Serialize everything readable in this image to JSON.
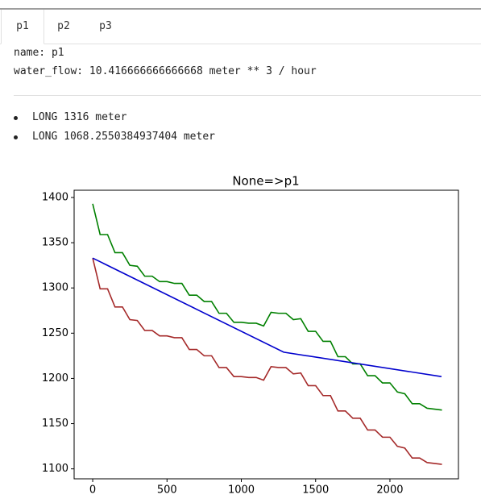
{
  "tabs": [
    "p1",
    "p2",
    "p3"
  ],
  "active_tab": 0,
  "info": [
    "name: p1",
    "water_flow: 10.416666666666668 meter ** 3 / hour"
  ],
  "bullets": [
    "LONG 1316 meter",
    "LONG 1068.2550384937404 meter"
  ],
  "chart_data": {
    "type": "line",
    "title": "None=>p1",
    "xlim": [
      -125,
      2461
    ],
    "ylim": [
      1089,
      1408
    ],
    "xticks": [
      0,
      500,
      1000,
      1500,
      2000
    ],
    "yticks": [
      1100,
      1150,
      1200,
      1250,
      1300,
      1350,
      1400
    ],
    "series": [
      {
        "color": "#008000",
        "x": [
          0,
          50,
          100,
          150,
          200,
          250,
          300,
          350,
          400,
          450,
          500,
          550,
          600,
          650,
          700,
          750,
          800,
          850,
          900,
          950,
          1000,
          1050,
          1100,
          1150,
          1200,
          1250,
          1300,
          1350,
          1400,
          1450,
          1500,
          1550,
          1600,
          1650,
          1700,
          1750,
          1800,
          1850,
          1900,
          1950,
          2000,
          2050,
          2100,
          2150,
          2200,
          2250,
          2300,
          2350
        ],
        "values": [
          1393,
          1359,
          1359,
          1339,
          1339,
          1325,
          1324,
          1313,
          1313,
          1307,
          1307,
          1305,
          1305,
          1292,
          1292,
          1285,
          1285,
          1272,
          1272,
          1262,
          1262,
          1261,
          1261,
          1258,
          1273,
          1272,
          1272,
          1265,
          1266,
          1252,
          1252,
          1241,
          1241,
          1224,
          1224,
          1216,
          1216,
          1203,
          1203,
          1195,
          1195,
          1185,
          1183,
          1172,
          1172,
          1167,
          1166,
          1165
        ]
      },
      {
        "color": "#a52a2a",
        "x": [
          0,
          50,
          100,
          150,
          200,
          250,
          300,
          350,
          400,
          450,
          500,
          550,
          600,
          650,
          700,
          750,
          800,
          850,
          900,
          950,
          1000,
          1050,
          1100,
          1150,
          1200,
          1250,
          1300,
          1350,
          1400,
          1450,
          1500,
          1550,
          1600,
          1650,
          1700,
          1750,
          1800,
          1850,
          1900,
          1950,
          2000,
          2050,
          2100,
          2150,
          2200,
          2250,
          2300,
          2350
        ],
        "values": [
          1333,
          1299,
          1299,
          1279,
          1279,
          1265,
          1264,
          1253,
          1253,
          1247,
          1247,
          1245,
          1245,
          1232,
          1232,
          1225,
          1225,
          1212,
          1212,
          1202,
          1202,
          1201,
          1201,
          1198,
          1213,
          1212,
          1212,
          1205,
          1206,
          1192,
          1192,
          1181,
          1181,
          1164,
          1164,
          1156,
          1156,
          1143,
          1143,
          1135,
          1135,
          1125,
          1123,
          1112,
          1112,
          1107,
          1106,
          1105
        ]
      },
      {
        "color": "#0000cd",
        "x": [
          0,
          1285,
          2347
        ],
        "values": [
          1333,
          1229,
          1202
        ]
      }
    ]
  }
}
